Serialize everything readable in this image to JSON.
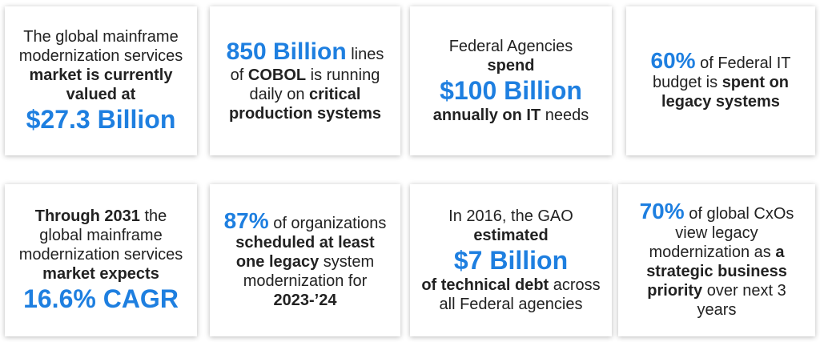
{
  "accent_color": "#1e7fe0",
  "cards": [
    {
      "id": "card-1",
      "p1": "The global mainframe modernization services ",
      "b1": "market is currently valued at",
      "big": "$27.3 Billion"
    },
    {
      "id": "card-2",
      "big": "850 Billion",
      "p1": " lines of ",
      "b1": "COBOL",
      "p2": " is running daily on ",
      "b2": "critical production systems"
    },
    {
      "id": "card-3",
      "p1": "Federal Agencies",
      "b1": "spend",
      "big": "$100 Billion",
      "b2": "annually on IT",
      "p2": " needs"
    },
    {
      "id": "card-4",
      "big": "60%",
      "p1": " of Federal IT budget is ",
      "b1": "spent on legacy systems"
    },
    {
      "id": "card-5",
      "b1": "Through 2031",
      "p1": " the global mainframe modernization services ",
      "b2": "market expects",
      "big": "16.6% CAGR"
    },
    {
      "id": "card-6",
      "big": "87%",
      "p1": " of organizations ",
      "b1": "scheduled at least one legacy",
      "p2": " system modernization for ",
      "b2": "2023-’24"
    },
    {
      "id": "card-7",
      "p1": "In 2016, the GAO ",
      "b1": "estimated",
      "big": "$7 Billion",
      "b2": " of technical debt",
      "p2": " across all Federal agencies"
    },
    {
      "id": "card-8",
      "big": "70%",
      "p1": " of global CxOs view legacy modernization as ",
      "b1": "a strategic business priority",
      "p2": " over next 3 years"
    }
  ]
}
